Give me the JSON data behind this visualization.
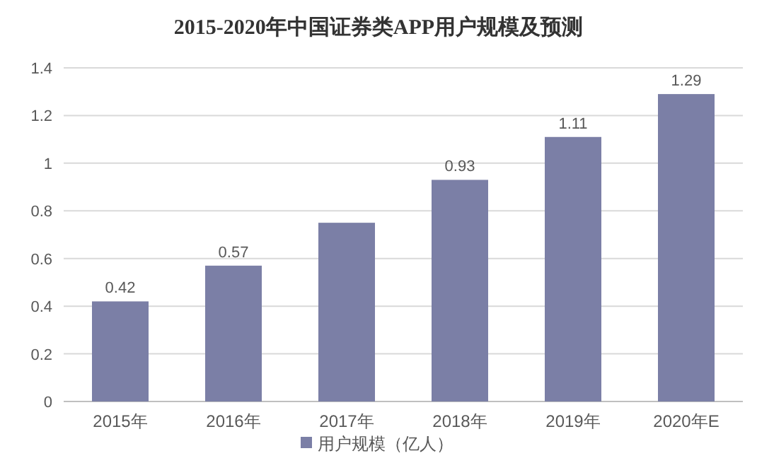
{
  "chart_data": {
    "type": "bar",
    "title": "2015-2020年中国证券类APP用户规模及预测",
    "categories": [
      "2015年",
      "2016年",
      "2017年",
      "2018年",
      "2019年",
      "2020年E"
    ],
    "series": [
      {
        "name": "用户规模（亿人）",
        "color": "#7b7fa6",
        "values": [
          0.42,
          0.57,
          0.75,
          0.93,
          1.11,
          1.29
        ]
      }
    ],
    "value_labels": [
      "0.42",
      "0.57",
      null,
      "0.93",
      "1.11",
      "1.29"
    ],
    "ylim": [
      0,
      1.4
    ],
    "yticks": [
      0,
      0.2,
      0.4,
      0.6,
      0.8,
      1,
      1.2,
      1.4
    ],
    "grid": "y",
    "legend": "bottom"
  }
}
